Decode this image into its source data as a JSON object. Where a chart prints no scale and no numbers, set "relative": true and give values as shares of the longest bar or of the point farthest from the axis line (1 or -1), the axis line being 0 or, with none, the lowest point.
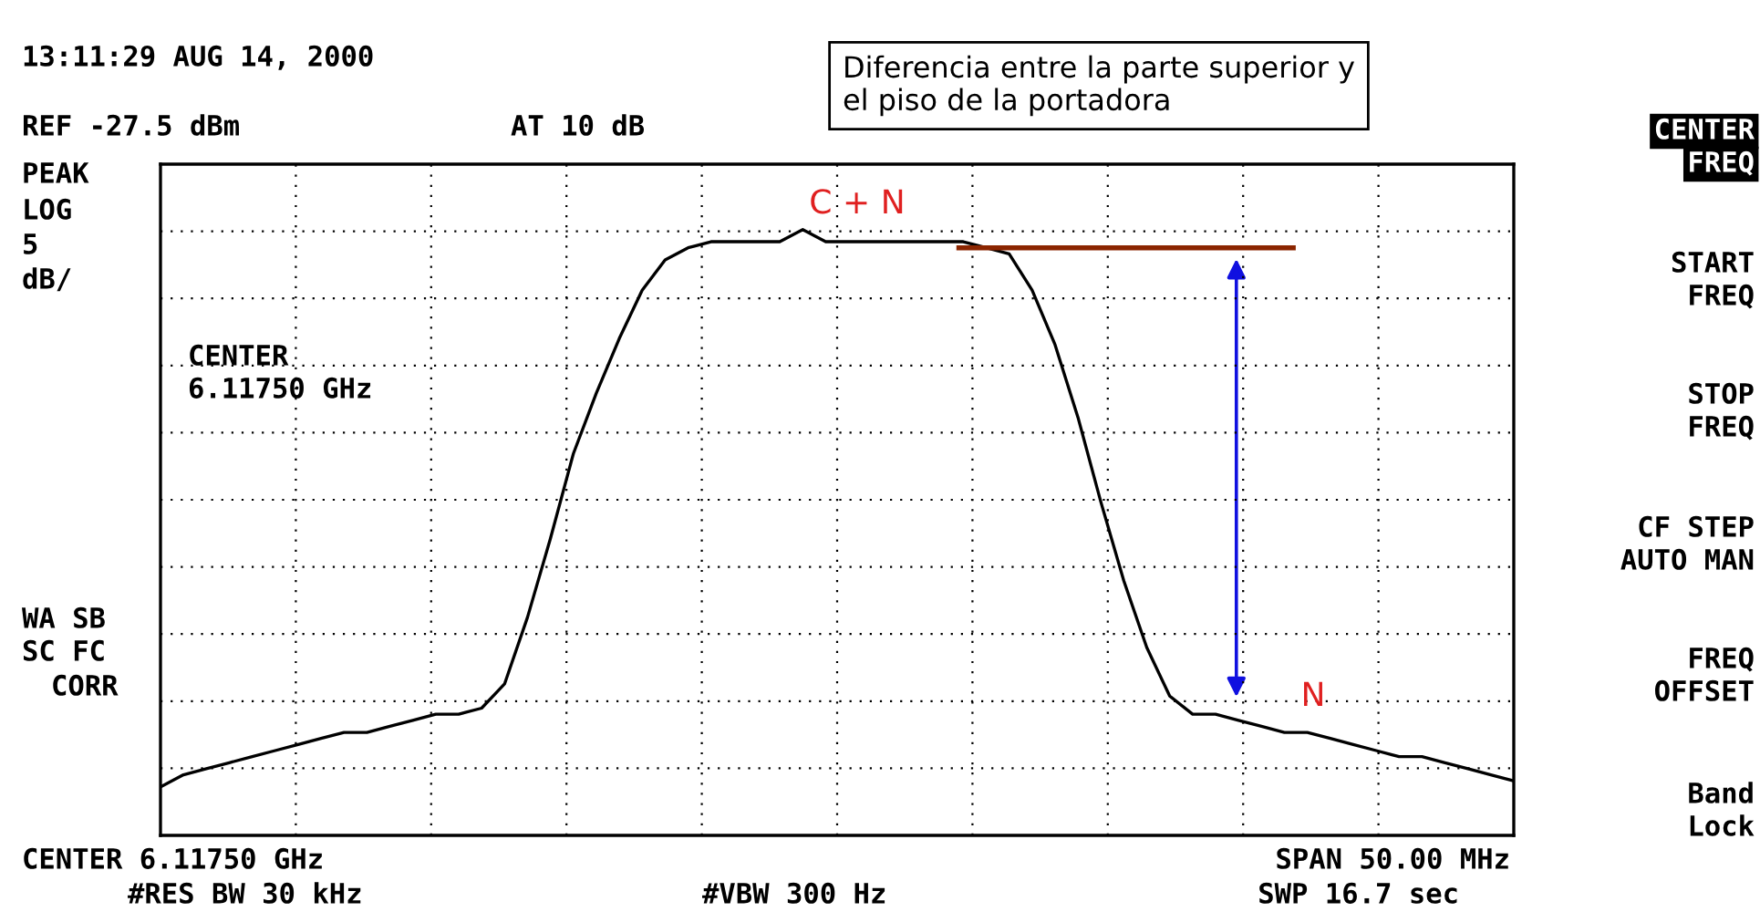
{
  "chart_data": {
    "type": "line",
    "relative": true,
    "grid": true,
    "line_style": "solid",
    "title": "Diferencia entre la parte superior y\nel piso de la portadora",
    "categories": [
      null,
      null,
      null,
      null,
      null,
      null,
      null,
      null,
      null,
      null,
      null,
      null,
      null,
      null,
      null,
      null,
      null,
      null,
      null,
      null,
      null,
      null,
      null,
      null,
      null,
      null,
      null,
      null,
      null,
      null,
      null,
      null,
      null,
      null,
      null,
      null,
      null,
      null,
      null,
      null,
      null,
      null,
      null,
      null,
      null,
      null,
      null,
      null,
      null,
      null,
      null,
      null,
      null,
      null,
      null,
      null,
      null,
      null,
      null,
      null
    ],
    "series": [
      {
        "color": "#000000",
        "values": [
          0.08,
          0.1,
          0.11,
          0.12,
          0.13,
          0.14,
          0.15,
          0.16,
          0.17,
          0.17,
          0.18,
          0.19,
          0.2,
          0.2,
          0.21,
          0.25,
          0.36,
          0.49,
          0.63,
          0.73,
          0.82,
          0.9,
          0.95,
          0.97,
          0.98,
          0.98,
          0.98,
          0.98,
          1,
          0.98,
          0.98,
          0.98,
          0.98,
          0.98,
          0.98,
          0.98,
          0.97,
          0.96,
          0.9,
          0.81,
          0.69,
          0.55,
          0.42,
          0.31,
          0.23,
          0.2,
          0.2,
          0.19,
          0.18,
          0.17,
          0.17,
          0.16,
          0.15,
          0.14,
          0.13,
          0.13,
          0.12,
          0.11,
          0.1,
          0.09
        ]
      }
    ],
    "ref_lines": [
      {
        "axis": "y",
        "value": 0.97,
        "color": "#8b2500"
      }
    ],
    "annotations": [
      "13:11:29 AUG 14, 2000",
      "REF -27.5 dBm",
      "AT 10 dB",
      "PEAK",
      "LOG",
      "5",
      "dB/",
      "CENTER",
      "6.11750 GHz",
      "WA SB",
      "SC FC",
      "CORR",
      "CENTER 6.11750 GHz",
      "#RES BW 30 kHz",
      "#VBW 300 Hz",
      "SPAN 50.00 MHz",
      "SWP 16.7 sec",
      "CENTER",
      "FREQ",
      "START",
      "FREQ",
      "STOP",
      "FREQ",
      "CF STEP",
      "AUTO MAN",
      "FREQ",
      "OFFSET",
      "Band",
      "Lock",
      "C + N",
      "N"
    ]
  }
}
